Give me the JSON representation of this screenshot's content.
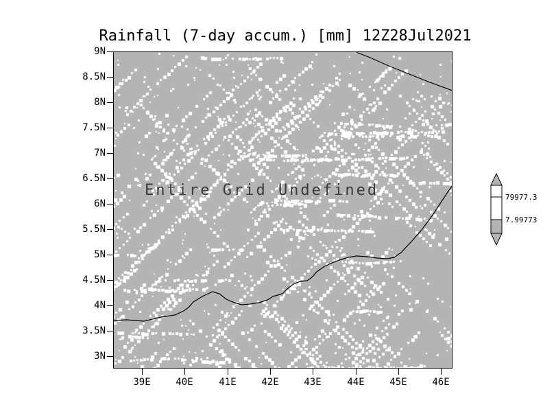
{
  "title": "Rainfall (7-day accum.) [mm] 12Z28Jul2021",
  "annotation": "Entire Grid Undefined",
  "colorbar": {
    "max_label": "79977.3",
    "min_label": "7.99773"
  },
  "colors": {
    "page_background": "#ffffff",
    "grid_gray": "#b4b4b4",
    "speckle_white": "#ffffff",
    "coastline_black": "#000000",
    "annotation_gray": "#3a3a3a"
  },
  "chart_data": {
    "type": "heatmap",
    "title": "Rainfall (7-day accum.) [mm] 12Z28Jul2021",
    "variable": "Rainfall (7-day accum.)",
    "units": "mm",
    "valid_time": "12Z28Jul2021",
    "annotation": "Entire Grid Undefined",
    "data_status": "entire grid undefined - no rainfall values plotted, dithered gray/white undefined texture fills the map",
    "x_axis": "longitude (degrees East)",
    "y_axis": "latitude (degrees North)",
    "x_ticks": [
      "39E",
      "40E",
      "41E",
      "42E",
      "43E",
      "44E",
      "45E",
      "46E"
    ],
    "y_ticks": [
      "9N",
      "8.5N",
      "8N",
      "7.5N",
      "7N",
      "6.5N",
      "6N",
      "5.5N",
      "5N",
      "4.5N",
      "4N",
      "3.5N",
      "3N"
    ],
    "colorbar_levels": [
      7.99773,
      79977.3
    ],
    "colorbar_labels": [
      "79977.3",
      "7.99773"
    ],
    "grid": false,
    "legend_position": "vertical colorbar with arrow ends, right of plot",
    "overlays": [
      "coastline segment crossing upper-right corner",
      "coastline running from left edge near 3.6N across map and rising to exit right edge near 6.4N"
    ]
  }
}
